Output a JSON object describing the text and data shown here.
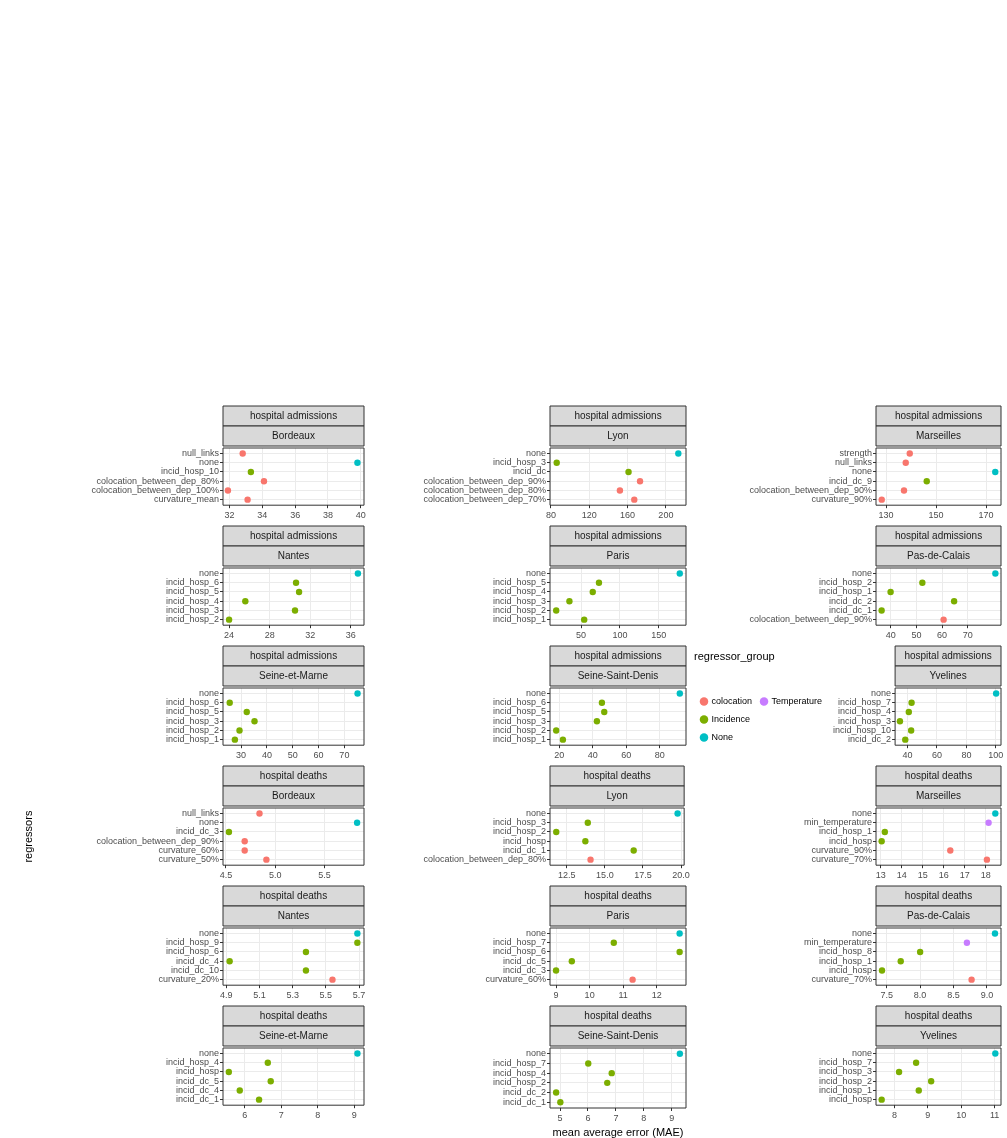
{
  "chart_data": [
    {
      "type": "scatter",
      "title": "hospital admissions",
      "subtitle": "Bordeaux",
      "orientation": "horizontal",
      "marker": "circle",
      "grid": true,
      "categories": [
        "null_links",
        "none",
        "incid_hosp_10",
        "colocation_between_dep_80%",
        "colocation_between_dep_100%",
        "curvature_mean"
      ],
      "series": [
        {
          "color": "#f8766d",
          "values": [
            32.8,
            null,
            null,
            34.1,
            31.9,
            33.1
          ]
        },
        {
          "color": "#7cae00",
          "values": [
            null,
            null,
            33.3,
            null,
            null,
            null
          ]
        },
        {
          "color": "#00bfc4",
          "values": [
            null,
            39.8,
            null,
            null,
            null,
            null
          ]
        }
      ],
      "xlim": [
        31.6,
        40.2
      ],
      "xticks": [
        32,
        34,
        36,
        38,
        40
      ]
    },
    {
      "type": "scatter",
      "title": "hospital admissions",
      "subtitle": "Lyon",
      "orientation": "horizontal",
      "marker": "circle",
      "grid": true,
      "categories": [
        "none",
        "incid_hosp_3",
        "incid_dc",
        "colocation_between_dep_90%",
        "colocation_between_dep_80%",
        "colocation_between_dep_70%"
      ],
      "series": [
        {
          "color": "#f8766d",
          "values": [
            null,
            null,
            null,
            173,
            152,
            167
          ]
        },
        {
          "color": "#7cae00",
          "values": [
            null,
            86,
            161,
            null,
            null,
            null
          ]
        },
        {
          "color": "#00bfc4",
          "values": [
            213,
            null,
            null,
            null,
            null,
            null
          ]
        }
      ],
      "xlim": [
        79,
        221
      ],
      "xticks": [
        80,
        120,
        160,
        200
      ]
    },
    {
      "type": "scatter",
      "title": "hospital admissions",
      "subtitle": "Marseilles",
      "orientation": "horizontal",
      "marker": "circle",
      "grid": true,
      "categories": [
        "strength",
        "null_links",
        "none",
        "incid_dc_9",
        "colocation_between_dep_90%",
        "curvature_90%"
      ],
      "series": [
        {
          "color": "#f8766d",
          "values": [
            139.5,
            137.9,
            null,
            null,
            137.2,
            128.3
          ]
        },
        {
          "color": "#7cae00",
          "values": [
            null,
            null,
            null,
            146.3,
            null,
            null
          ]
        },
        {
          "color": "#00bfc4",
          "values": [
            null,
            null,
            173.7,
            null,
            null,
            null
          ]
        }
      ],
      "xlim": [
        126,
        176
      ],
      "xticks": [
        130,
        150,
        170
      ]
    },
    {
      "type": "scatter",
      "title": "hospital admissions",
      "subtitle": "Nantes",
      "orientation": "horizontal",
      "marker": "circle",
      "grid": true,
      "categories": [
        "none",
        "incid_hosp_6",
        "incid_hosp_5",
        "incid_hosp_4",
        "incid_hosp_3",
        "incid_hosp_2"
      ],
      "series": [
        {
          "color": "#7cae00",
          "values": [
            null,
            30.6,
            30.9,
            25.6,
            30.5,
            24.0
          ]
        },
        {
          "color": "#00bfc4",
          "values": [
            36.7,
            null,
            null,
            null,
            null,
            null
          ]
        }
      ],
      "xlim": [
        23.4,
        37.3
      ],
      "xticks": [
        24,
        28,
        32,
        36
      ]
    },
    {
      "type": "scatter",
      "title": "hospital admissions",
      "subtitle": "Paris",
      "orientation": "horizontal",
      "marker": "circle",
      "grid": true,
      "categories": [
        "none",
        "incid_hosp_5",
        "incid_hosp_4",
        "incid_hosp_3",
        "incid_hosp_2",
        "incid_hosp_1"
      ],
      "series": [
        {
          "color": "#7cae00",
          "values": [
            null,
            73,
            65,
            35,
            18,
            54
          ]
        },
        {
          "color": "#00bfc4",
          "values": [
            177,
            null,
            null,
            null,
            null,
            null
          ]
        }
      ],
      "xlim": [
        10,
        185
      ],
      "xticks": [
        50,
        100,
        150
      ]
    },
    {
      "type": "scatter",
      "title": "hospital admissions",
      "subtitle": "Pas-de-Calais",
      "orientation": "horizontal",
      "marker": "circle",
      "grid": true,
      "categories": [
        "none",
        "incid_hosp_2",
        "incid_hosp_1",
        "incid_dc_2",
        "incid_dc_1",
        "colocation_between_dep_90%"
      ],
      "series": [
        {
          "color": "#f8766d",
          "values": [
            null,
            null,
            null,
            null,
            null,
            60.6
          ]
        },
        {
          "color": "#7cae00",
          "values": [
            null,
            52.3,
            39.9,
            64.7,
            36.4,
            null
          ]
        },
        {
          "color": "#00bfc4",
          "values": [
            80.8,
            null,
            null,
            null,
            null,
            null
          ]
        }
      ],
      "xlim": [
        34.2,
        83
      ],
      "xticks": [
        40,
        50,
        60,
        70
      ]
    },
    {
      "type": "scatter",
      "title": "hospital admissions",
      "subtitle": "Seine-et-Marne",
      "orientation": "horizontal",
      "marker": "circle",
      "grid": true,
      "categories": [
        "none",
        "incid_hosp_6",
        "incid_hosp_5",
        "incid_hosp_3",
        "incid_hosp_2",
        "incid_hosp_1"
      ],
      "series": [
        {
          "color": "#7cae00",
          "values": [
            null,
            25.6,
            32.2,
            35.2,
            29.4,
            27.6
          ]
        },
        {
          "color": "#00bfc4",
          "values": [
            75.1,
            null,
            null,
            null,
            null,
            null
          ]
        }
      ],
      "xlim": [
        23,
        77.6
      ],
      "xticks": [
        30,
        40,
        50,
        60,
        70
      ]
    },
    {
      "type": "scatter",
      "title": "hospital admissions",
      "subtitle": "Seine-Saint-Denis",
      "orientation": "horizontal",
      "marker": "circle",
      "grid": true,
      "categories": [
        "none",
        "incid_hosp_6",
        "incid_hosp_5",
        "incid_hosp_3",
        "incid_hosp_2",
        "incid_hosp_1"
      ],
      "series": [
        {
          "color": "#7cae00",
          "values": [
            null,
            45.5,
            46.9,
            42.5,
            18.2,
            22.2
          ]
        },
        {
          "color": "#00bfc4",
          "values": [
            92.0,
            null,
            null,
            null,
            null,
            null
          ]
        }
      ],
      "xlim": [
        14.5,
        95.7
      ],
      "xticks": [
        20,
        40,
        60,
        80
      ]
    },
    {
      "type": "scatter",
      "title": "hospital admissions",
      "subtitle": "Yvelines",
      "orientation": "horizontal",
      "marker": "circle",
      "grid": true,
      "legend": "left",
      "legend_title": "regressor_group",
      "categories": [
        "none",
        "incid_hosp_7",
        "incid_hosp_4",
        "incid_hosp_3",
        "incid_hosp_10",
        "incid_dc_2"
      ],
      "series": [
        {
          "name": "colocation",
          "color": "#f8766d",
          "values": [
            null,
            null,
            null,
            null,
            null,
            null
          ]
        },
        {
          "name": "Incidence",
          "color": "#7cae00",
          "values": [
            null,
            42.8,
            40.9,
            34.9,
            42.5,
            38.5
          ]
        },
        {
          "name": "None",
          "color": "#00bfc4",
          "values": [
            100.2,
            null,
            null,
            null,
            null,
            null
          ]
        },
        {
          "name": "Temperature",
          "color": "#c77cff",
          "values": [
            null,
            null,
            null,
            null,
            null,
            null
          ]
        }
      ],
      "xlim": [
        31.6,
        103.5
      ],
      "xticks": [
        40,
        60,
        80,
        100
      ]
    },
    {
      "type": "scatter",
      "title": "hospital deaths",
      "subtitle": "Bordeaux",
      "orientation": "horizontal",
      "marker": "circle",
      "grid": true,
      "ylabel": "regressors",
      "categories": [
        "null_links",
        "none",
        "incid_dc_3",
        "colocation_between_dep_90%",
        "curvature_60%",
        "curvature_50%"
      ],
      "series": [
        {
          "color": "#f8766d",
          "values": [
            4.84,
            null,
            null,
            4.69,
            4.69,
            4.91
          ]
        },
        {
          "color": "#7cae00",
          "values": [
            null,
            null,
            4.53,
            null,
            null,
            null
          ]
        },
        {
          "color": "#00bfc4",
          "values": [
            null,
            5.83,
            null,
            null,
            null,
            null
          ]
        }
      ],
      "xlim": [
        4.47,
        5.9
      ],
      "xticks": [
        4.5,
        {
          "value": 5,
          "label": "5.0"
        },
        5.5
      ]
    },
    {
      "type": "scatter",
      "title": "hospital deaths",
      "subtitle": "Lyon",
      "orientation": "horizontal",
      "marker": "circle",
      "grid": true,
      "categories": [
        "none",
        "incid_hosp_3",
        "incid_hosp_2",
        "incid_hosp",
        "incid_dc_1",
        "colocation_between_dep_80%"
      ],
      "series": [
        {
          "color": "#f8766d",
          "values": [
            null,
            null,
            null,
            null,
            null,
            14.06
          ]
        },
        {
          "color": "#7cae00",
          "values": [
            null,
            13.88,
            11.81,
            13.72,
            16.89,
            null
          ]
        },
        {
          "color": "#00bfc4",
          "values": [
            19.77,
            null,
            null,
            null,
            null,
            null
          ]
        }
      ],
      "xlim": [
        11.4,
        20.2
      ],
      "xticks": [
        12.5,
        {
          "value": 15,
          "label": "15.0"
        },
        17.5,
        {
          "value": 20,
          "label": "20.0"
        }
      ]
    },
    {
      "type": "scatter",
      "title": "hospital deaths",
      "subtitle": "Marseilles",
      "orientation": "horizontal",
      "marker": "circle",
      "grid": true,
      "categories": [
        "none",
        "min_temperature",
        "incid_hosp_1",
        "incid_hosp",
        "curvature_90%",
        "curvature_70%"
      ],
      "series": [
        {
          "color": "#f8766d",
          "values": [
            null,
            null,
            null,
            null,
            16.31,
            18.05
          ]
        },
        {
          "color": "#7cae00",
          "values": [
            null,
            null,
            13.2,
            13.05,
            null,
            null
          ]
        },
        {
          "color": "#00bfc4",
          "values": [
            18.45,
            null,
            null,
            null,
            null,
            null
          ]
        },
        {
          "color": "#c77cff",
          "values": [
            null,
            18.13,
            null,
            null,
            null,
            null
          ]
        }
      ],
      "xlim": [
        12.78,
        18.72
      ],
      "xticks": [
        13,
        14,
        15,
        16,
        17,
        18
      ]
    },
    {
      "type": "scatter",
      "title": "hospital deaths",
      "subtitle": "Nantes",
      "orientation": "horizontal",
      "marker": "circle",
      "grid": true,
      "categories": [
        "none",
        "incid_hosp_9",
        "incid_hosp_6",
        "incid_dc_4",
        "incid_dc_10",
        "curvature_20%"
      ],
      "series": [
        {
          "color": "#f8766d",
          "values": [
            null,
            null,
            null,
            null,
            null,
            5.54
          ]
        },
        {
          "color": "#7cae00",
          "values": [
            null,
            5.69,
            5.38,
            4.92,
            5.38,
            null
          ]
        },
        {
          "color": "#00bfc4",
          "values": [
            5.69,
            null,
            null,
            null,
            null,
            null
          ]
        }
      ],
      "xlim": [
        4.88,
        5.73
      ],
      "xticks": [
        4.9,
        5.1,
        5.3,
        5.5,
        5.7
      ]
    },
    {
      "type": "scatter",
      "title": "hospital deaths",
      "subtitle": "Paris",
      "orientation": "horizontal",
      "marker": "circle",
      "grid": true,
      "categories": [
        "none",
        "incid_hosp_7",
        "incid_hosp_6",
        "incid_dc_5",
        "incid_dc_3",
        "curvature_60%"
      ],
      "series": [
        {
          "color": "#f8766d",
          "values": [
            null,
            null,
            null,
            null,
            null,
            11.28
          ]
        },
        {
          "color": "#7cae00",
          "values": [
            null,
            10.72,
            12.68,
            9.47,
            9.0,
            null
          ]
        },
        {
          "color": "#00bfc4",
          "values": [
            12.68,
            null,
            null,
            null,
            null,
            null
          ]
        }
      ],
      "xlim": [
        8.82,
        12.87
      ],
      "xticks": [
        9,
        10,
        11,
        12
      ]
    },
    {
      "type": "scatter",
      "title": "hospital deaths",
      "subtitle": "Pas-de-Calais",
      "orientation": "horizontal",
      "marker": "circle",
      "grid": true,
      "categories": [
        "none",
        "min_temperature",
        "incid_hosp_8",
        "incid_hosp_1",
        "incid_hosp",
        "curvature_70%"
      ],
      "series": [
        {
          "color": "#f8766d",
          "values": [
            null,
            null,
            null,
            null,
            null,
            8.77
          ]
        },
        {
          "color": "#7cae00",
          "values": [
            null,
            null,
            8.0,
            7.71,
            7.43,
            null
          ]
        },
        {
          "color": "#00bfc4",
          "values": [
            9.12,
            null,
            null,
            null,
            null,
            null
          ]
        },
        {
          "color": "#c77cff",
          "values": [
            null,
            8.7,
            null,
            null,
            null,
            null
          ]
        }
      ],
      "xlim": [
        7.34,
        9.21
      ],
      "xticks": [
        7.5,
        {
          "value": 8,
          "label": "8.0"
        },
        8.5,
        {
          "value": 9,
          "label": "9.0"
        }
      ]
    },
    {
      "type": "scatter",
      "title": "hospital deaths",
      "subtitle": "Seine-et-Marne",
      "orientation": "horizontal",
      "marker": "circle",
      "grid": true,
      "categories": [
        "none",
        "incid_hosp_4",
        "incid_hosp",
        "incid_dc_5",
        "incid_dc_4",
        "incid_dc_1"
      ],
      "series": [
        {
          "color": "#7cae00",
          "values": [
            null,
            6.63,
            5.56,
            6.71,
            5.86,
            6.39
          ]
        },
        {
          "color": "#00bfc4",
          "values": [
            9.09,
            null,
            null,
            null,
            null,
            null
          ]
        }
      ],
      "xlim": [
        5.4,
        9.27
      ],
      "xticks": [
        6,
        7,
        8,
        9
      ]
    },
    {
      "type": "scatter",
      "title": "hospital deaths",
      "subtitle": "Seine-Saint-Denis",
      "orientation": "horizontal",
      "marker": "circle",
      "grid": true,
      "xlabel": "mean average error (MAE)",
      "categories": [
        "none",
        "incid_hosp_7",
        "incid_hosp_4",
        "incid_hosp_2",
        "incid_dc_2",
        "incid_dc_1"
      ],
      "series": [
        {
          "color": "#7cae00",
          "values": [
            null,
            6.01,
            6.85,
            6.69,
            4.86,
            5.01
          ]
        },
        {
          "color": "#00bfc4",
          "values": [
            9.29,
            null,
            null,
            null,
            null,
            null
          ]
        }
      ],
      "xlim": [
        4.64,
        9.51
      ],
      "xticks": [
        5,
        6,
        7,
        8,
        9
      ]
    },
    {
      "type": "scatter",
      "title": "hospital deaths",
      "subtitle": "Yvelines",
      "orientation": "horizontal",
      "marker": "circle",
      "grid": true,
      "categories": [
        "none",
        "incid_hosp_7",
        "incid_hosp_3",
        "incid_hosp_2",
        "incid_hosp_1",
        "incid_hosp"
      ],
      "series": [
        {
          "color": "#7cae00",
          "values": [
            null,
            8.65,
            8.14,
            9.1,
            8.73,
            7.62
          ]
        },
        {
          "color": "#00bfc4",
          "values": [
            11.02,
            null,
            null,
            null,
            null,
            null
          ]
        }
      ],
      "xlim": [
        7.45,
        11.19
      ],
      "xticks": [
        8,
        9,
        10,
        11
      ]
    }
  ]
}
